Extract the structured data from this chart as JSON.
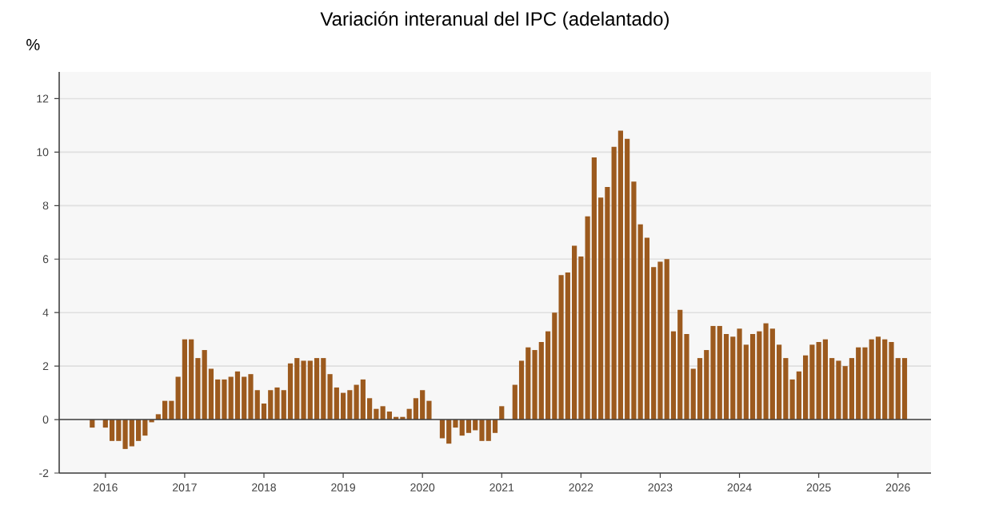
{
  "chart_data": {
    "type": "bar",
    "title": "Variación interanual del IPC (adelantado)",
    "ylabel": "%",
    "x": [
      "2015-11",
      "2015-12",
      "2016-01",
      "2016-02",
      "2016-03",
      "2016-04",
      "2016-05",
      "2016-06",
      "2016-07",
      "2016-08",
      "2016-09",
      "2016-10",
      "2016-11",
      "2016-12",
      "2017-01",
      "2017-02",
      "2017-03",
      "2017-04",
      "2017-05",
      "2017-06",
      "2017-07",
      "2017-08",
      "2017-09",
      "2017-10",
      "2017-11",
      "2017-12",
      "2018-01",
      "2018-02",
      "2018-03",
      "2018-04",
      "2018-05",
      "2018-06",
      "2018-07",
      "2018-08",
      "2018-09",
      "2018-10",
      "2018-11",
      "2018-12",
      "2019-01",
      "2019-02",
      "2019-03",
      "2019-04",
      "2019-05",
      "2019-06",
      "2019-07",
      "2019-08",
      "2019-09",
      "2019-10",
      "2019-11",
      "2019-12",
      "2020-01",
      "2020-02",
      "2020-03",
      "2020-04",
      "2020-05",
      "2020-06",
      "2020-07",
      "2020-08",
      "2020-09",
      "2020-10",
      "2020-11",
      "2020-12",
      "2021-01",
      "2021-02",
      "2021-03",
      "2021-04",
      "2021-05",
      "2021-06",
      "2021-07",
      "2021-08",
      "2021-09",
      "2021-10",
      "2021-11",
      "2021-12",
      "2022-01",
      "2022-02",
      "2022-03",
      "2022-04",
      "2022-05",
      "2022-06",
      "2022-07",
      "2022-08",
      "2022-09",
      "2022-10",
      "2022-11",
      "2022-12",
      "2023-01",
      "2023-02",
      "2023-03",
      "2023-04",
      "2023-05",
      "2023-06",
      "2023-07",
      "2023-08",
      "2023-09",
      "2023-10",
      "2023-11",
      "2023-12",
      "2024-01",
      "2024-02",
      "2024-03",
      "2024-04",
      "2024-05",
      "2024-06",
      "2024-07",
      "2024-08",
      "2024-09",
      "2024-10",
      "2024-11",
      "2024-12",
      "2025-01",
      "2025-02",
      "2025-03",
      "2025-04",
      "2025-05",
      "2025-06",
      "2025-07",
      "2025-08",
      "2025-09",
      "2025-10",
      "2025-11",
      "2025-12",
      "2026-01",
      "2026-02"
    ],
    "values": [
      -0.3,
      0.0,
      -0.3,
      -0.8,
      -0.8,
      -1.1,
      -1.0,
      -0.8,
      -0.6,
      -0.1,
      0.2,
      0.7,
      0.7,
      1.6,
      3.0,
      3.0,
      2.3,
      2.6,
      1.9,
      1.5,
      1.5,
      1.6,
      1.8,
      1.6,
      1.7,
      1.1,
      0.6,
      1.1,
      1.2,
      1.1,
      2.1,
      2.3,
      2.2,
      2.2,
      2.3,
      2.3,
      1.7,
      1.2,
      1.0,
      1.1,
      1.3,
      1.5,
      0.8,
      0.4,
      0.5,
      0.3,
      0.1,
      0.1,
      0.4,
      0.8,
      1.1,
      0.7,
      0.0,
      -0.7,
      -0.9,
      -0.3,
      -0.6,
      -0.5,
      -0.4,
      -0.8,
      -0.8,
      -0.5,
      0.5,
      0.0,
      1.3,
      2.2,
      2.7,
      2.6,
      2.9,
      3.3,
      4.0,
      5.4,
      5.5,
      6.5,
      6.1,
      7.6,
      9.8,
      8.3,
      8.7,
      10.2,
      10.8,
      10.5,
      8.9,
      7.3,
      6.8,
      5.7,
      5.9,
      6.0,
      3.3,
      4.1,
      3.2,
      1.9,
      2.3,
      2.6,
      3.5,
      3.5,
      3.2,
      3.1,
      3.4,
      2.8,
      3.2,
      3.3,
      3.6,
      3.4,
      2.8,
      2.3,
      1.5,
      1.8,
      2.4,
      2.8,
      2.9,
      3.0,
      2.3,
      2.2,
      2.0,
      2.3,
      2.7,
      2.7,
      3.0,
      3.1,
      3.0,
      2.9,
      2.3,
      2.3
    ],
    "color": "#9c5a1e",
    "xlim": [
      "2015-06",
      "2026-06"
    ],
    "xticks": [
      {
        "value": "2016-01",
        "label": "2016"
      },
      {
        "value": "2017-01",
        "label": "2017"
      },
      {
        "value": "2018-01",
        "label": "2018"
      },
      {
        "value": "2019-01",
        "label": "2019"
      },
      {
        "value": "2020-01",
        "label": "2020"
      },
      {
        "value": "2021-01",
        "label": "2021"
      },
      {
        "value": "2022-01",
        "label": "2022"
      },
      {
        "value": "2023-01",
        "label": "2023"
      },
      {
        "value": "2024-01",
        "label": "2024"
      },
      {
        "value": "2025-01",
        "label": "2025"
      },
      {
        "value": "2026-01",
        "label": "2026"
      }
    ],
    "ylim": [
      -2,
      13
    ],
    "yticks": [
      -2,
      0,
      2,
      4,
      6,
      8,
      10,
      12
    ],
    "grid": "y"
  }
}
